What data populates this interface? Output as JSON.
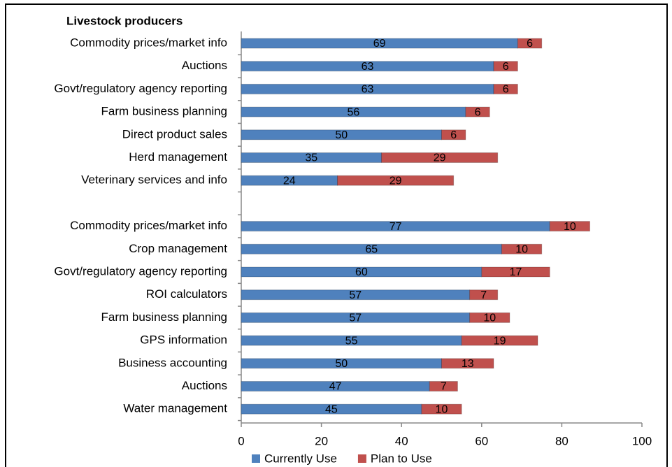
{
  "chart_data": {
    "type": "stacked-bar",
    "orientation": "horizontal",
    "title": "Livestock producers",
    "categories": [
      "Commodity prices/market info",
      "Auctions",
      "Govt/regulatory agency reporting",
      "Farm business planning",
      "Direct product sales",
      "Herd management",
      "Veterinary services and info",
      null,
      "Commodity prices/market info",
      "Crop management",
      "Govt/regulatory agency reporting",
      "ROI calculators",
      "Farm business planning",
      "GPS information",
      "Business accounting",
      "Auctions",
      "Water management"
    ],
    "series": [
      {
        "name": "Currently Use",
        "color": "#4f81bd",
        "values": [
          69,
          63,
          63,
          56,
          50,
          35,
          24,
          null,
          77,
          65,
          60,
          57,
          57,
          55,
          50,
          47,
          45
        ]
      },
      {
        "name": "Plan to Use",
        "color": "#c0504d",
        "values": [
          6,
          6,
          6,
          6,
          6,
          29,
          29,
          null,
          10,
          10,
          17,
          7,
          10,
          19,
          13,
          7,
          10
        ]
      }
    ],
    "xlim": [
      0,
      100
    ],
    "xticks": [
      0,
      20,
      40,
      60,
      80,
      100
    ],
    "legend": "bottom"
  }
}
